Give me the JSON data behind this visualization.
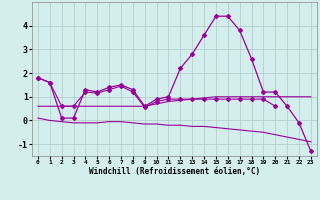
{
  "xlabel": "Windchill (Refroidissement éolien,°C)",
  "x": [
    0,
    1,
    2,
    3,
    4,
    5,
    6,
    7,
    8,
    9,
    10,
    11,
    12,
    13,
    14,
    15,
    16,
    17,
    18,
    19,
    20,
    21,
    22,
    23
  ],
  "line1": [
    1.8,
    1.6,
    0.1,
    0.1,
    1.3,
    1.2,
    1.4,
    1.5,
    1.3,
    0.6,
    0.9,
    1.0,
    2.2,
    2.8,
    3.6,
    4.4,
    4.4,
    3.8,
    2.6,
    1.2,
    1.2,
    0.6,
    -0.1,
    -1.3
  ],
  "line2": [
    0.6,
    0.6,
    0.6,
    0.6,
    0.6,
    0.6,
    0.6,
    0.6,
    0.6,
    0.6,
    0.7,
    0.8,
    0.85,
    0.9,
    0.95,
    1.0,
    1.0,
    1.0,
    1.0,
    1.0,
    1.0,
    1.0,
    1.0,
    1.0
  ],
  "line3": [
    0.1,
    0.0,
    -0.05,
    -0.1,
    -0.1,
    -0.1,
    -0.05,
    -0.05,
    -0.1,
    -0.15,
    -0.15,
    -0.2,
    -0.2,
    -0.25,
    -0.25,
    -0.3,
    -0.35,
    -0.4,
    -0.45,
    -0.5,
    -0.6,
    -0.7,
    -0.8,
    -0.9
  ],
  "line4": [
    1.8,
    1.6,
    0.6,
    0.6,
    1.2,
    1.15,
    1.3,
    1.45,
    1.2,
    0.55,
    0.8,
    0.9,
    0.9,
    0.9,
    0.9,
    0.9,
    0.9,
    0.9,
    0.9,
    0.9,
    0.6,
    null,
    null,
    null
  ],
  "ylim": [
    -1.5,
    5.0
  ],
  "yticks": [
    -1,
    0,
    1,
    2,
    3,
    4
  ],
  "xticks": [
    0,
    1,
    2,
    3,
    4,
    5,
    6,
    7,
    8,
    9,
    10,
    11,
    12,
    13,
    14,
    15,
    16,
    17,
    18,
    19,
    20,
    21,
    22,
    23
  ],
  "line_color": "#990099",
  "bg_color": "#d4eeee",
  "grid_color": "#b0c8c8"
}
